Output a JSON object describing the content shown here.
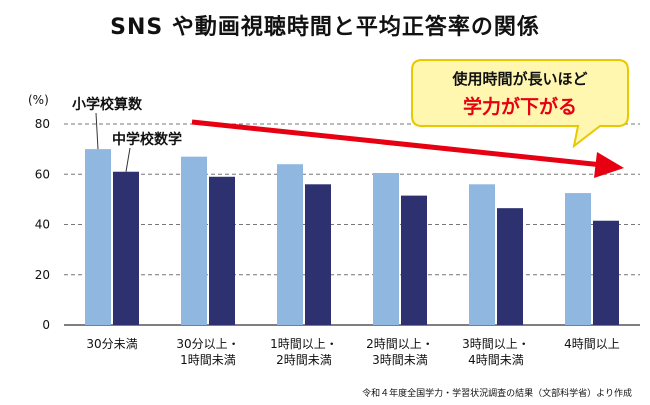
{
  "title": "SNS や動画視聴時間と平均正答率の関係",
  "source": "令和４年度全国学力・学習状況調査の結果（文部科学省）より作成",
  "colors": {
    "elementary": "#8fb7e0",
    "junior": "#2e3170",
    "arrow": "#e60012",
    "callout_fill": "#fff7b0",
    "callout_stroke": "#e8c800",
    "grid": "#777777"
  },
  "callout": {
    "line1": "使用時間が長いほど",
    "line2": "学力が下がる"
  },
  "chart_data": {
    "type": "bar",
    "yunit": "(%)",
    "ylim": [
      0,
      80
    ],
    "yticks": [
      0,
      20,
      40,
      60,
      80
    ],
    "grid": "dashed horizontal",
    "categories": [
      [
        "30分未満"
      ],
      [
        "30分以上・",
        "1時間未満"
      ],
      [
        "1時間以上・",
        "2時間未満"
      ],
      [
        "2時間以上・",
        "3時間未満"
      ],
      [
        "3時間以上・",
        "4時間未満"
      ],
      [
        "4時間以上"
      ]
    ],
    "series": [
      {
        "name": "小学校算数",
        "values": [
          70,
          67,
          64,
          60.5,
          56,
          52.5
        ]
      },
      {
        "name": "中学校数学",
        "values": [
          61,
          59,
          56,
          51.5,
          46.5,
          41.5
        ]
      }
    ],
    "trend_arrow": "downward, from top-left to right"
  }
}
